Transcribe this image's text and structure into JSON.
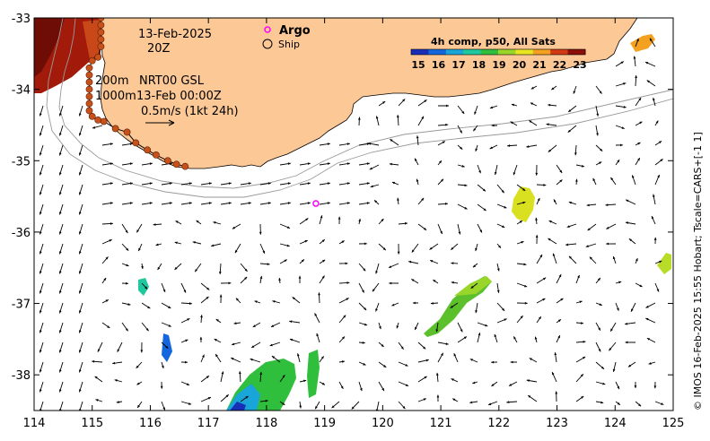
{
  "map": {
    "lon_range": [
      114,
      125
    ],
    "lat_range": [
      -38.5,
      -33
    ],
    "x_ticks": [
      "114",
      "115",
      "116",
      "117",
      "118",
      "119",
      "120",
      "121",
      "122",
      "123",
      "124",
      "125"
    ],
    "y_ticks": [
      "-33",
      "-34",
      "-35",
      "-36",
      "-37",
      "-38"
    ],
    "land_color": "#fcc896",
    "contour_color": "#9a9a9a"
  },
  "annotations": {
    "date": "13-Feb-2025",
    "hour": "20Z",
    "depth_200": "200m",
    "depth_1000": "1000m",
    "product": "NRT00 GSL",
    "product_time": "13-Feb 00:00Z",
    "scale_text": "0.5m/s (1kt 24h)",
    "argo_label": "Argo",
    "ship_label": "Ship",
    "credit": "© IMOS 16-Feb-2025 15:55 Hobart; Tscale=CARS+[-1 1]"
  },
  "colorbar": {
    "title": "4h comp, p50, All Sats",
    "labels": [
      "15",
      "16",
      "17",
      "18",
      "19",
      "20",
      "21",
      "22",
      "23"
    ],
    "colors": [
      "#1a2fb8",
      "#1466dc",
      "#1aa5d8",
      "#20c8a0",
      "#2fbf3c",
      "#9ad52a",
      "#e8e620",
      "#f4a020",
      "#d23a14",
      "#8a0f08"
    ]
  },
  "argo": {
    "lon": 118.85,
    "lat": -35.6,
    "color": "#ff00ff"
  },
  "ship_track": [
    {
      "lon": 115.15,
      "lat": -33.0
    },
    {
      "lon": 115.15,
      "lat": -33.1
    },
    {
      "lon": 115.15,
      "lat": -33.2
    },
    {
      "lon": 115.15,
      "lat": -33.3
    },
    {
      "lon": 115.15,
      "lat": -33.4
    },
    {
      "lon": 115.1,
      "lat": -33.55
    },
    {
      "lon": 115.0,
      "lat": -33.6
    },
    {
      "lon": 114.95,
      "lat": -33.7
    },
    {
      "lon": 114.95,
      "lat": -33.8
    },
    {
      "lon": 114.95,
      "lat": -33.9
    },
    {
      "lon": 114.95,
      "lat": -34.0
    },
    {
      "lon": 114.95,
      "lat": -34.1
    },
    {
      "lon": 114.95,
      "lat": -34.2
    },
    {
      "lon": 114.95,
      "lat": -34.3
    },
    {
      "lon": 115.0,
      "lat": -34.38
    },
    {
      "lon": 115.1,
      "lat": -34.43
    },
    {
      "lon": 115.2,
      "lat": -34.45
    },
    {
      "lon": 115.4,
      "lat": -34.55
    },
    {
      "lon": 115.6,
      "lat": -34.6
    },
    {
      "lon": 115.75,
      "lat": -34.75
    },
    {
      "lon": 115.95,
      "lat": -34.85
    },
    {
      "lon": 116.1,
      "lat": -34.92
    },
    {
      "lon": 116.3,
      "lat": -35.0
    },
    {
      "lon": 116.45,
      "lat": -35.05
    },
    {
      "lon": 116.6,
      "lat": -35.08
    }
  ]
}
